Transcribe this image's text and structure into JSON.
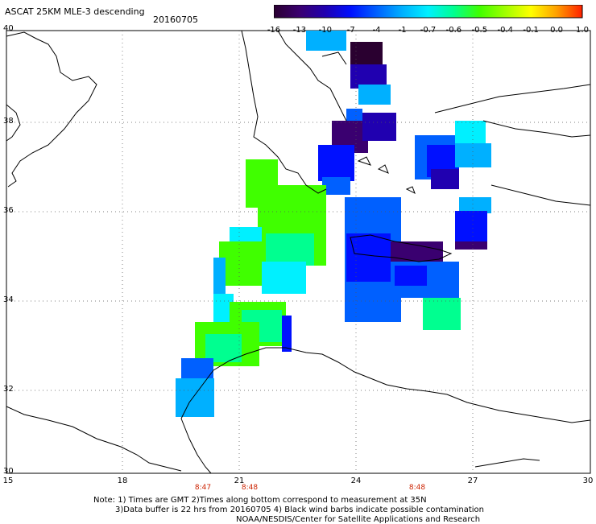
{
  "header": {
    "title": "ASCAT 25KM MLE-3 descending",
    "date": "20160705"
  },
  "colorbar": {
    "tick_labels": [
      "-16",
      "-13",
      "-10",
      "-7",
      "-4",
      "-1",
      "-0.7",
      "-0.6",
      "-0.5",
      "-0.4",
      "-0.1",
      "0.0",
      "1.0"
    ],
    "colors": [
      "#2a0030",
      "#3a0070",
      "#2000b0",
      "#0010ff",
      "#0060ff",
      "#00b0ff",
      "#00f0ff",
      "#00ff90",
      "#40ff00",
      "#a0ff00",
      "#ffff00",
      "#ffa000",
      "#ff2000"
    ]
  },
  "axes": {
    "lat_labels": [
      "40",
      "38",
      "36",
      "34",
      "32",
      "30"
    ],
    "lon_labels": [
      "15",
      "18",
      "21",
      "24",
      "27",
      "30"
    ]
  },
  "time_labels": [
    "8:47",
    "8:48",
    "8:48"
  ],
  "notes": {
    "line1": "Note: 1) Times are GMT 2)Times along bottom correspond to measurement at 35N",
    "line2": "3)Data buffer is 22 hrs from 20160705 4) Black wind barbs indicate possible contamination",
    "line3": "NOAA/NESDIS/Center for Satellite Applications and Research"
  },
  "map": {
    "lat_range": [
      30,
      40
    ],
    "lon_range": [
      15,
      30
    ],
    "grid": "dotted"
  }
}
